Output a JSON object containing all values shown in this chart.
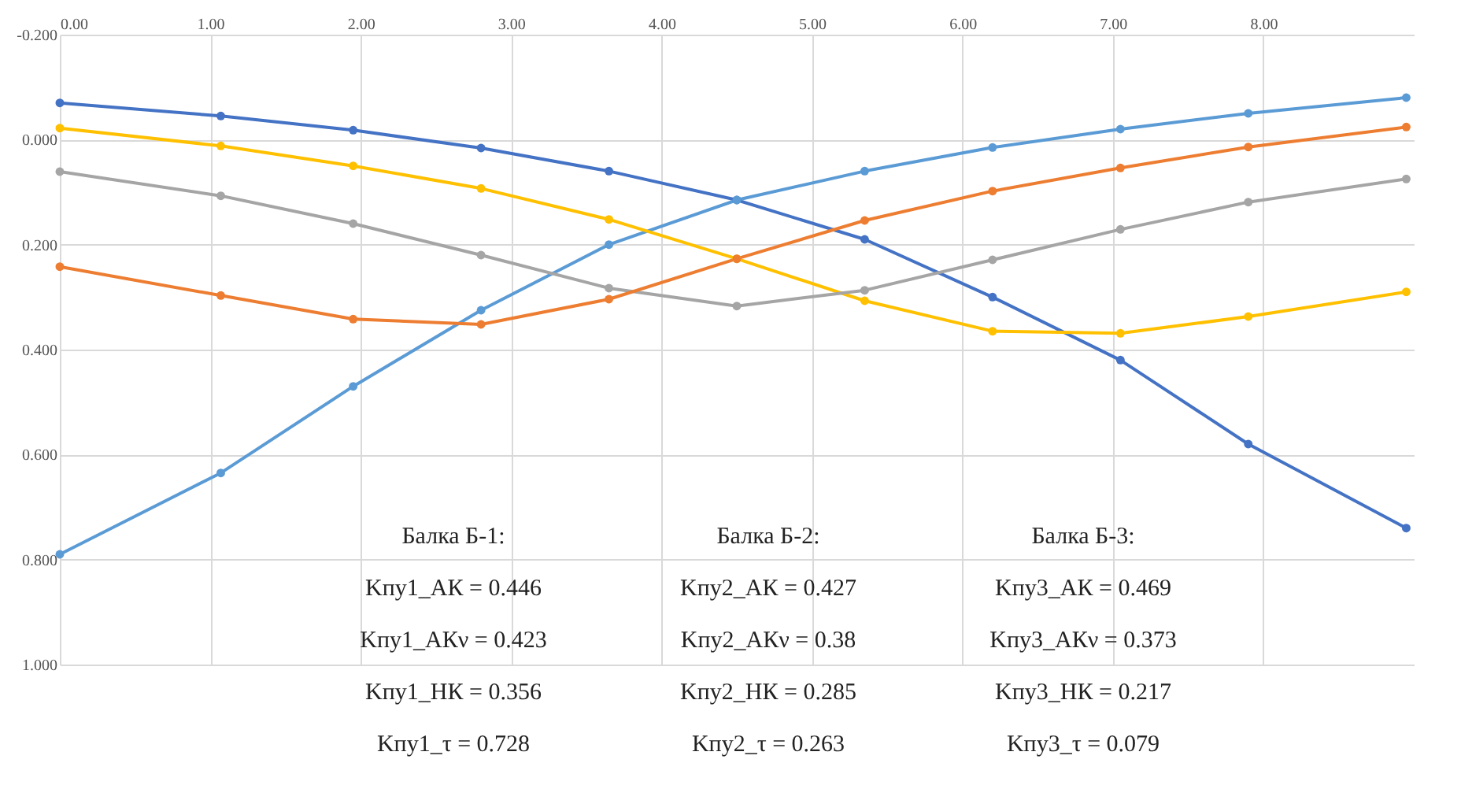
{
  "chart_data": {
    "type": "line",
    "x": [
      0,
      1.07,
      1.95,
      2.8,
      3.65,
      4.5,
      5.35,
      6.2,
      7.05,
      7.9,
      8.95
    ],
    "series": [
      {
        "color": "#4472c4",
        "values": [
          -0.07,
          -0.045,
          -0.018,
          0.016,
          0.06,
          0.115,
          0.19,
          0.3,
          0.42,
          0.58,
          0.74
        ]
      },
      {
        "color": "#5b9bd5",
        "values": [
          0.79,
          0.635,
          0.47,
          0.325,
          0.2,
          0.115,
          0.06,
          0.015,
          -0.02,
          -0.05,
          -0.08
        ]
      },
      {
        "color": "#ffc000",
        "values": [
          -0.022,
          0.012,
          0.05,
          0.093,
          0.152,
          0.227,
          0.307,
          0.365,
          0.369,
          0.337,
          0.29
        ]
      },
      {
        "color": "#a5a5a5",
        "values": [
          0.061,
          0.107,
          0.16,
          0.22,
          0.283,
          0.317,
          0.287,
          0.229,
          0.171,
          0.119,
          0.075
        ]
      },
      {
        "color": "#ed7d31",
        "values": [
          0.242,
          0.297,
          0.342,
          0.352,
          0.304,
          0.227,
          0.154,
          0.098,
          0.054,
          0.014,
          -0.024
        ]
      }
    ],
    "xlim": [
      0,
      9
    ],
    "xticks": [
      {
        "value": 0,
        "label": "0.00"
      },
      {
        "value": 1,
        "label": "1.00"
      },
      {
        "value": 2,
        "label": "2.00"
      },
      {
        "value": 3,
        "label": "3.00"
      },
      {
        "value": 4,
        "label": "4.00"
      },
      {
        "value": 5,
        "label": "5.00"
      },
      {
        "value": 6,
        "label": "6.00"
      },
      {
        "value": 7,
        "label": "7.00"
      },
      {
        "value": 8,
        "label": "8.00"
      }
    ],
    "ylim": [
      1.0,
      -0.2
    ],
    "yticks": [
      {
        "value": -0.2,
        "label": "-0.200"
      },
      {
        "value": 0,
        "label": "0.000"
      },
      {
        "value": 0.2,
        "label": "0.200"
      },
      {
        "value": 0.4,
        "label": "0.400"
      },
      {
        "value": 0.6,
        "label": "0.600"
      },
      {
        "value": 0.8,
        "label": "0.800"
      },
      {
        "value": 1.0,
        "label": "1.000"
      }
    ],
    "grid": true,
    "legend": false,
    "marker": "circle",
    "line_style": "solid",
    "annotations": [
      "Балка Б-1:",
      "Kпу1_АК = 0.446",
      "Kпу1_АКν = 0.423",
      "Kпу1_НК = 0.356",
      "Kпу1_τ = 0.728",
      "Балка Б-2:",
      "Kпу2_АК = 0.427",
      "Kпу2_АКν = 0.38",
      "Kпу2_НК = 0.285",
      "Kпу2_τ = 0.263",
      "Балка Б-3:",
      "Kпу3_АК = 0.469",
      "Kпу3_АКν = 0.373",
      "Kпу3_НК = 0.217",
      "Kпу3_τ = 0.079"
    ]
  }
}
